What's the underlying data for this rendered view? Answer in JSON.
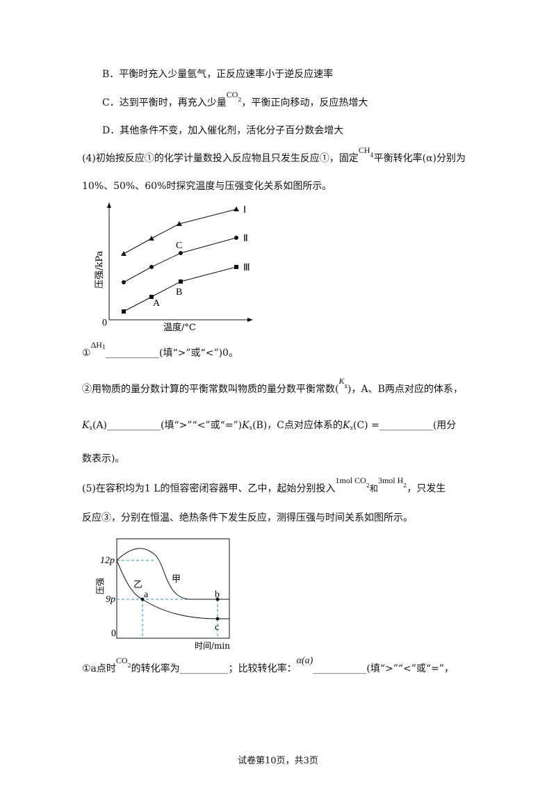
{
  "lines": [
    [
      "B．平衡时充入少量氩气，正反应速率小于逆反应速率"
    ],
    [
      "C．达到平衡时，再充入少量",
      "CO",
      "2",
      "，平衡正向移动，反应热增大"
    ],
    [
      "D．其他条件不变，加入催化剂，活化分子百分数会增大"
    ],
    [
      "(4)初始按反应①的化学计量数投入反应物且只发生反应①，固定",
      "CH",
      "4",
      "平衡转化率(α)分别为"
    ],
    [
      "10%、50%、60%时探究温度与压强变化关系如图所示。"
    ],
    [
      "①",
      "ΔH",
      "1",
      "___________(填“>”或“<”)0。"
    ],
    [
      "②用物质的量分数计算的平衡常数叫物质的量分数平衡常数(",
      "K",
      "x",
      ")，A、B两点对应的体系，"
    ],
    [
      "K",
      "x",
      "(A)",
      "___________(填“>”“<”或“=”)",
      "K",
      "x",
      "(B)",
      "，C点对应体系的",
      "K",
      "x",
      "(C) =",
      "___________(用分"
    ],
    [
      "数表示)。"
    ],
    [
      "(5)在容积均为1 L的恒容密闭容器甲、乙中，起始分别投入",
      "1mol CO",
      "2",
      "和",
      "3mol H",
      "2",
      "，只发生"
    ],
    [
      "反应③，分别在恒温、绝热条件下发生反应，测得压强与时间关系如图所示。"
    ],
    [
      "①a点时",
      "CO",
      "2",
      "的转化率为__________；比较转化率：",
      "α(a)",
      "___________(填“>”“<”或“=”，"
    ]
  ],
  "figure1": {
    "y_label": "压强/kPa",
    "x_label": "温度/°C",
    "origin": "0",
    "curves": [
      "Ⅰ",
      "Ⅱ",
      "Ⅲ"
    ],
    "points": [
      "A",
      "B",
      "C"
    ]
  },
  "figure2": {
    "y_label": "压强",
    "x_label": "时间/min",
    "origin": "0",
    "yticks": [
      "12p",
      "9p"
    ],
    "curves": [
      "甲",
      "乙"
    ],
    "points": [
      "a",
      "b",
      "c"
    ]
  },
  "footer": "试卷第10页，共3页"
}
